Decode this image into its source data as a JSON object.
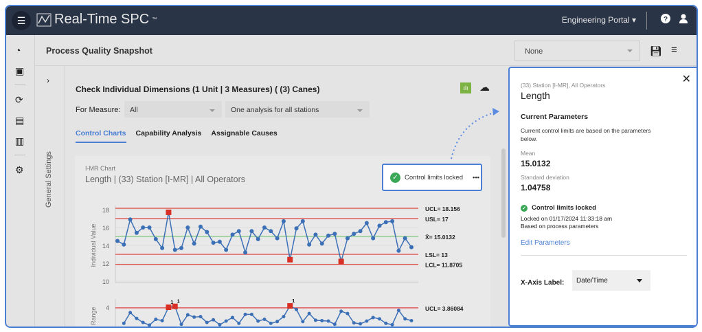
{
  "topbar": {
    "app_name": "Real-Time SPC",
    "trademark": "™",
    "portal": "Engineering Portal"
  },
  "icons": {
    "menu": "hamburger-icon",
    "help": "question-circle-icon",
    "user": "user-icon",
    "rail": [
      "speedometer-icon",
      "monitor-chart-icon",
      "sync-icon",
      "archive-icon",
      "clipboard-icon",
      "gear-icon"
    ]
  },
  "subheader": {
    "title": "Process Quality Snapshot",
    "dropdown_value": "None"
  },
  "general_settings": "General Settings",
  "content": {
    "title": "Check Individual Dimensions (1 Unit | 3 Measures) ( (3) Canes)",
    "for_measure_label": "For Measure:",
    "measure_value": "All",
    "station_value": "One analysis for all stations",
    "tabs": [
      "Control Charts",
      "Capability Analysis",
      "Assignable Causes"
    ],
    "active_tab": "Control Charts"
  },
  "chart_card": {
    "type_label": "I-MR Chart",
    "title": "Length | (33) Station [I-MR] | All Operators",
    "lock_label": "Control limits locked",
    "more": "•••"
  },
  "chart_data": {
    "type": "line",
    "ylabel": "Individual Value",
    "ylim": [
      10,
      18.5
    ],
    "yticks": [
      10,
      12,
      14,
      16,
      18
    ],
    "values": [
      14.5,
      14.1,
      16.9,
      15.4,
      16.0,
      16.0,
      14.7,
      13.7,
      17.7,
      13.5,
      13.7,
      16.0,
      14.2,
      16.1,
      15.5,
      14.3,
      14.4,
      13.5,
      15.2,
      15.6,
      13.2,
      15.6,
      14.7,
      16.0,
      15.6,
      14.8,
      16.7,
      12.4,
      15.9,
      16.7,
      14.1,
      15.2,
      14.2,
      15.1,
      15.3,
      12.2,
      14.8,
      15.3,
      15.6,
      16.5,
      14.8,
      16.2,
      16.6,
      16.7,
      13.4,
      14.8,
      13.8
    ],
    "out_of_control": [
      8,
      27,
      35
    ],
    "limits": [
      {
        "label": "UCL= 18.156",
        "value": 18.156,
        "color": "#e0413a"
      },
      {
        "label": "USL= 17",
        "value": 17,
        "color": "#e0413a"
      },
      {
        "label": "X̄= 15.0132",
        "value": 15.0132,
        "color": "#6cbf6c"
      },
      {
        "label": "LSL= 13",
        "value": 13,
        "color": "#e0413a"
      },
      {
        "label": "LCL= 11.8705",
        "value": 11.8705,
        "color": "#e0413a"
      }
    ],
    "mr": {
      "ylabel": "Range",
      "ytick": 4,
      "ucl_label": "UCL= 3.86084",
      "ucl": 3.86084,
      "out_of_control": [
        8,
        9,
        27
      ]
    },
    "line_color": "#3b6fb6",
    "ooc_color": "#d93025"
  },
  "panel": {
    "subtitle": "(33) Station [I-MR], All Operators",
    "title": "Length",
    "section": "Current Parameters",
    "desc": "Current control limits are based on the parameters below.",
    "mean_label": "Mean",
    "mean": "15.0132",
    "sd_label": "Standard deviation",
    "sd": "1.04758",
    "lock_status": "Control limits locked",
    "locked_on": "Locked on 01/17/2024 11:33:18 am",
    "based_on": "Based on process parameters",
    "edit": "Edit Parameters",
    "xaxis_label": "X-Axis Label:",
    "xaxis_value": "Date/Time"
  },
  "colors": {
    "accent": "#4a7fd4",
    "topbar": "#2a3447",
    "success": "#3aa757"
  }
}
